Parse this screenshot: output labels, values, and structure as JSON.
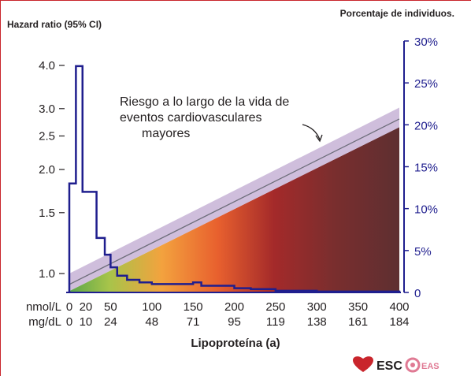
{
  "chart_data": {
    "type": "area",
    "left_axis_label": "Hazard ratio (95% CI)",
    "right_axis_label": "Porcentaje de individuos.",
    "xlabel": "Lipoproteína (a)",
    "x_unit_labels": [
      "nmol/L",
      "mg/dL"
    ],
    "x_ticks_nmol": [
      0,
      20,
      50,
      100,
      150,
      200,
      250,
      300,
      350,
      400
    ],
    "x_ticks_mgdl": [
      "0",
      "10",
      "24",
      "48",
      "71",
      "95",
      "119",
      "138",
      "161",
      "184"
    ],
    "xlim": [
      0,
      400
    ],
    "left_axis_scale": "log",
    "left_ylim": [
      0.9,
      4.5
    ],
    "left_ticks": [
      "1.0",
      "1.5",
      "2.0",
      "2.5",
      "3.0",
      "4.0"
    ],
    "right_ylim": [
      0,
      30
    ],
    "right_ticks": [
      "0",
      "5%",
      "10%",
      "15%",
      "20%",
      "25%",
      "30%"
    ],
    "annotation": [
      "Riesgo a lo largo de la vida de",
      "eventos cardiovasculares",
      "mayores"
    ],
    "risk_line": {
      "x": [
        0,
        400
      ],
      "hazard_ratio": [
        0.93,
        2.8
      ],
      "ci_lower": [
        0.89,
        2.65
      ],
      "ci_upper": [
        1.0,
        3.02
      ]
    },
    "distribution": {
      "name": "Porcentaje de individuos",
      "bin_edges": [
        0,
        8,
        16,
        33,
        43,
        50,
        58,
        70,
        85,
        100,
        150,
        160,
        200,
        220,
        250,
        300,
        400
      ],
      "percent": [
        13,
        27,
        12,
        6.5,
        4.5,
        3,
        2,
        1.5,
        1.2,
        1,
        1.2,
        0.8,
        0.5,
        0.4,
        0.2,
        0.1
      ]
    },
    "colors": {
      "distribution_line": "#1f1e8e",
      "risk_line": "#6d6d7a",
      "ci_band": "#c7b3d6",
      "gradient": [
        "#5aa64a",
        "#a7c44a",
        "#f3a23e",
        "#e8602e",
        "#a42a2a",
        "#7a2e2e",
        "#5e2f31"
      ],
      "frame": "#c9252c"
    }
  },
  "logos": {
    "esc_text": "ESC",
    "eas_text": "EAS"
  }
}
